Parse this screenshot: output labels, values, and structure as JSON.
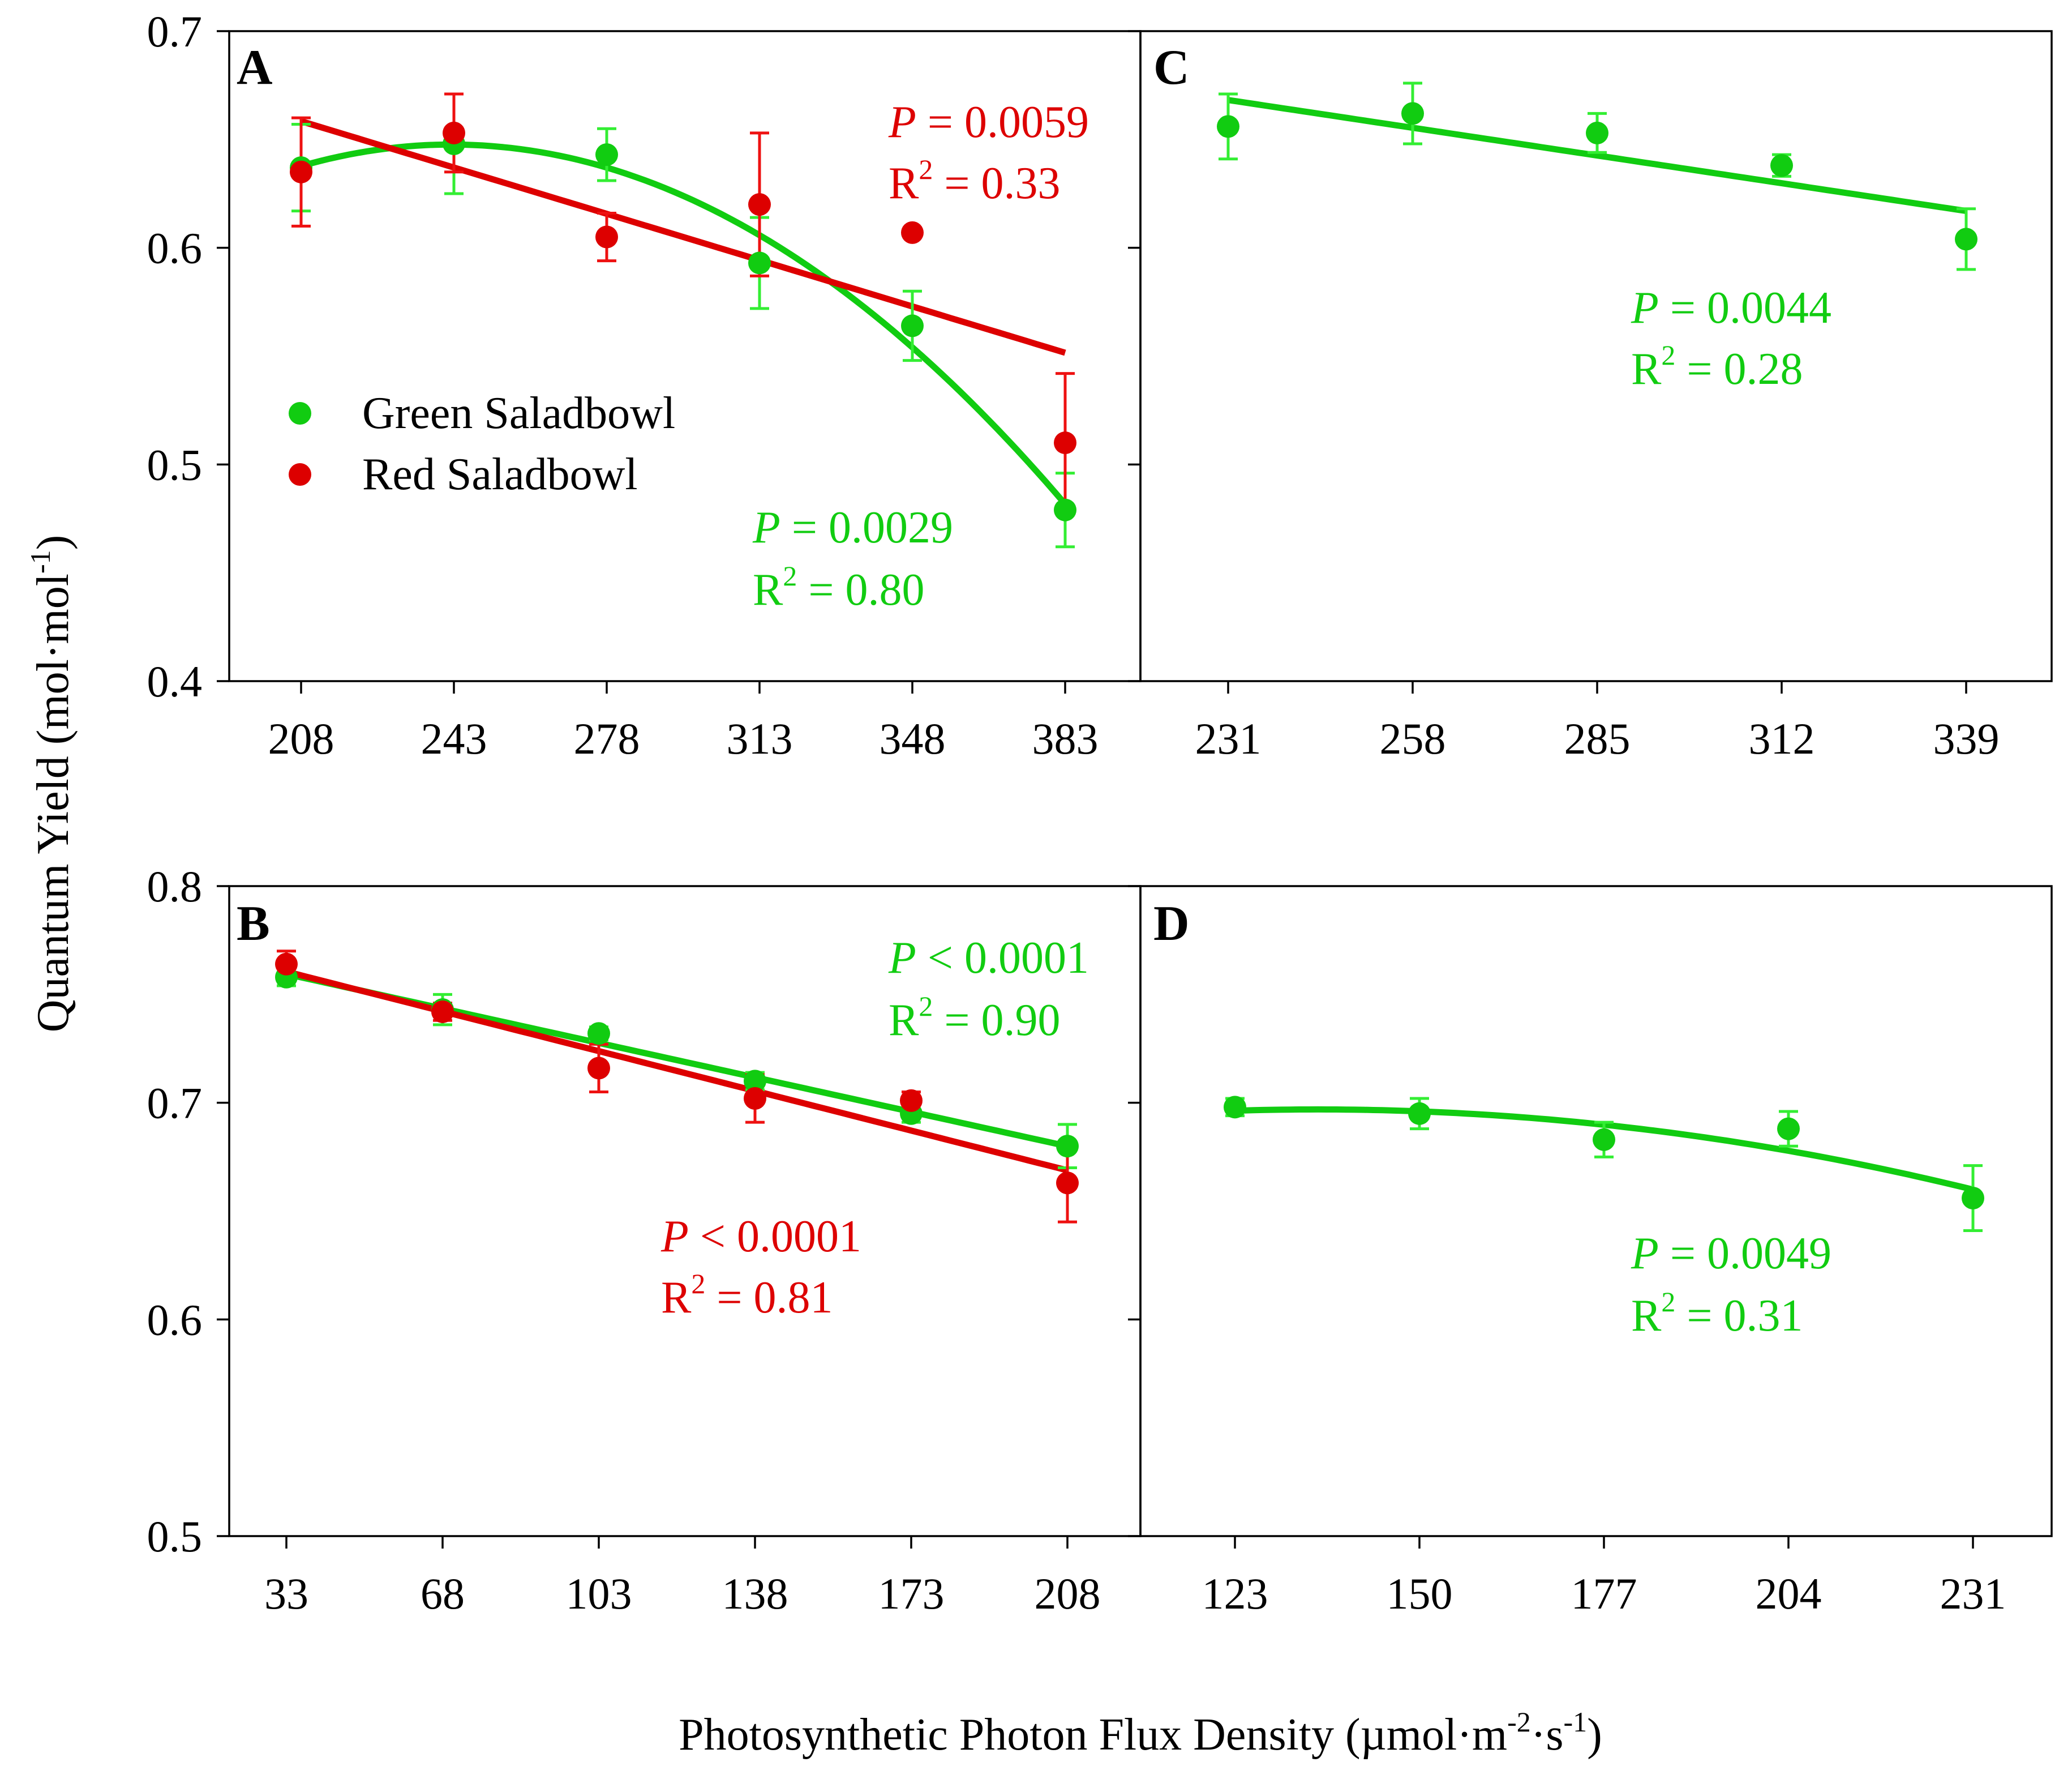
{
  "colors": {
    "green": "#11cc11",
    "red": "#dd0000",
    "green_err": "#33ee33",
    "red_err": "#ee1111"
  },
  "figure": {
    "ylabel_main": "Quantum Yield (mol·mol",
    "ylabel_sup": "-1",
    "ylabel_end": ")",
    "xlabel_main": "Photosynthetic Photon Flux Density (µmol·m",
    "xlabel_sup1": "-2",
    "xlabel_mid": "·s",
    "xlabel_sup2": "-1",
    "xlabel_end": ")"
  },
  "legend": {
    "green_label": "Green Saladbowl",
    "red_label": "Red Saladbowl"
  },
  "chart_data": [
    {
      "panel": "A",
      "type": "scatter",
      "categories": [
        "208",
        "243",
        "278",
        "313",
        "348",
        "383"
      ],
      "ylim": [
        0.4,
        0.7
      ],
      "yticks": [
        "0.4",
        "0.5",
        "0.6",
        "0.7"
      ],
      "series": [
        {
          "name": "Green Saladbowl",
          "color": "green",
          "values": [
            0.637,
            0.648,
            0.643,
            0.593,
            0.564,
            0.479
          ],
          "errors": [
            0.02,
            0.023,
            0.012,
            0.021,
            0.016,
            0.017
          ],
          "fit": "quadratic",
          "fit_range": [
            0,
            5
          ]
        },
        {
          "name": "Red Saladbowl",
          "color": "red",
          "values": [
            0.635,
            0.653,
            0.605,
            0.62,
            0.607,
            0.51
          ],
          "errors": [
            0.025,
            0.018,
            0.011,
            0.033,
            0.0,
            0.032
          ],
          "fit": "linear",
          "fit_range": [
            0,
            5
          ]
        }
      ],
      "annotations": [
        {
          "color": "red",
          "p_symbol": "P",
          "p_text": " = 0.0059",
          "r_main": "R",
          "r_sup": "2",
          "r_text": " = 0.33"
        },
        {
          "color": "green",
          "p_symbol": "P",
          "p_text": " = 0.0029",
          "r_main": "R",
          "r_sup": "2",
          "r_text": " = 0.80"
        }
      ]
    },
    {
      "panel": "C",
      "type": "scatter",
      "categories": [
        "231",
        "258",
        "285",
        "312",
        "339"
      ],
      "ylim": [
        0.4,
        0.7
      ],
      "series": [
        {
          "name": "Green Saladbowl",
          "color": "green",
          "values": [
            0.656,
            0.662,
            0.653,
            0.638,
            0.604
          ],
          "errors": [
            0.015,
            0.014,
            0.009,
            0.005,
            0.014
          ],
          "fit": "linear",
          "fit_range": [
            0,
            4
          ]
        }
      ],
      "annotations": [
        {
          "color": "green",
          "p_symbol": "P",
          "p_text": " = 0.0044",
          "r_main": "R",
          "r_sup": "2",
          "r_text": " = 0.28"
        }
      ]
    },
    {
      "panel": "B",
      "type": "scatter",
      "categories": [
        "33",
        "68",
        "103",
        "138",
        "173",
        "208"
      ],
      "ylim": [
        0.5,
        0.8
      ],
      "yticks": [
        "0.5",
        "0.6",
        "0.7",
        "0.8"
      ],
      "series": [
        {
          "name": "Green Saladbowl",
          "color": "green",
          "values": [
            0.758,
            0.743,
            0.732,
            0.71,
            0.695,
            0.68
          ],
          "errors": [
            0.004,
            0.007,
            0.003,
            0.004,
            0.004,
            0.01
          ],
          "fit": "linear",
          "fit_range": [
            0,
            5
          ]
        },
        {
          "name": "Red Saladbowl",
          "color": "red",
          "values": [
            0.764,
            0.742,
            0.716,
            0.702,
            0.701,
            0.663
          ],
          "errors": [
            0.006,
            0.004,
            0.011,
            0.011,
            0.004,
            0.018
          ],
          "fit": "linear",
          "fit_range": [
            0,
            5
          ]
        }
      ],
      "annotations": [
        {
          "color": "green",
          "p_symbol": "P",
          "p_text": " < 0.0001",
          "r_main": "R",
          "r_sup": "2",
          "r_text": " = 0.90"
        },
        {
          "color": "red",
          "p_symbol": "P",
          "p_text": " < 0.0001",
          "r_main": "R",
          "r_sup": "2",
          "r_text": " = 0.81"
        }
      ]
    },
    {
      "panel": "D",
      "type": "scatter",
      "categories": [
        "123",
        "150",
        "177",
        "204",
        "231"
      ],
      "ylim": [
        0.5,
        0.8
      ],
      "series": [
        {
          "name": "Green Saladbowl",
          "color": "green",
          "values": [
            0.698,
            0.695,
            0.683,
            0.688,
            0.656
          ],
          "errors": [
            0.004,
            0.007,
            0.008,
            0.008,
            0.015
          ],
          "fit": "quadratic",
          "fit_range": [
            0,
            4
          ]
        }
      ],
      "annotations": [
        {
          "color": "green",
          "p_symbol": "P",
          "p_text": " = 0.0049",
          "r_main": "R",
          "r_sup": "2",
          "r_text": " = 0.31"
        }
      ]
    }
  ]
}
